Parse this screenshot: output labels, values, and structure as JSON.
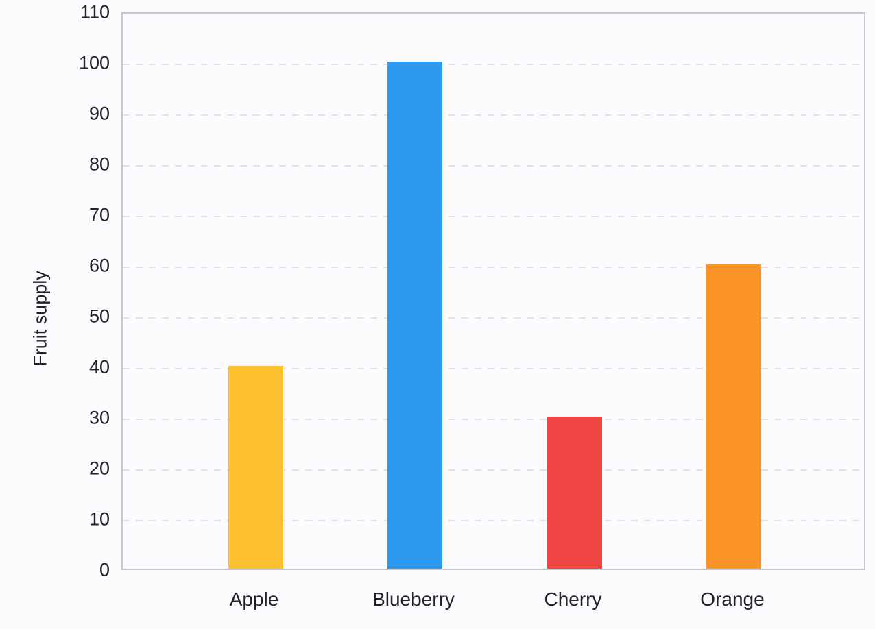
{
  "chart_data": {
    "type": "bar",
    "title": "",
    "xlabel": "",
    "ylabel": "Fruit supply",
    "categories": [
      "Apple",
      "Blueberry",
      "Cherry",
      "Orange"
    ],
    "values": [
      40,
      100,
      30,
      60
    ],
    "bar_colors": [
      "#fcbf2d",
      "#2e9aef",
      "#ef4643",
      "#fb9527"
    ],
    "ylim": [
      0,
      110
    ],
    "ytick_step": 10,
    "ytick_labels": [
      "0",
      "10",
      "20",
      "30",
      "40",
      "50",
      "60",
      "70",
      "80",
      "90",
      "100",
      "110"
    ],
    "grid": "horizontal-dashed",
    "legend": "none"
  },
  "colors": {
    "page_background": "#fbfbfe",
    "plot_background": "#fcfcff",
    "plot_border": "#c7c8ce",
    "gridline": "#e2e3e8",
    "text": "#212227"
  }
}
